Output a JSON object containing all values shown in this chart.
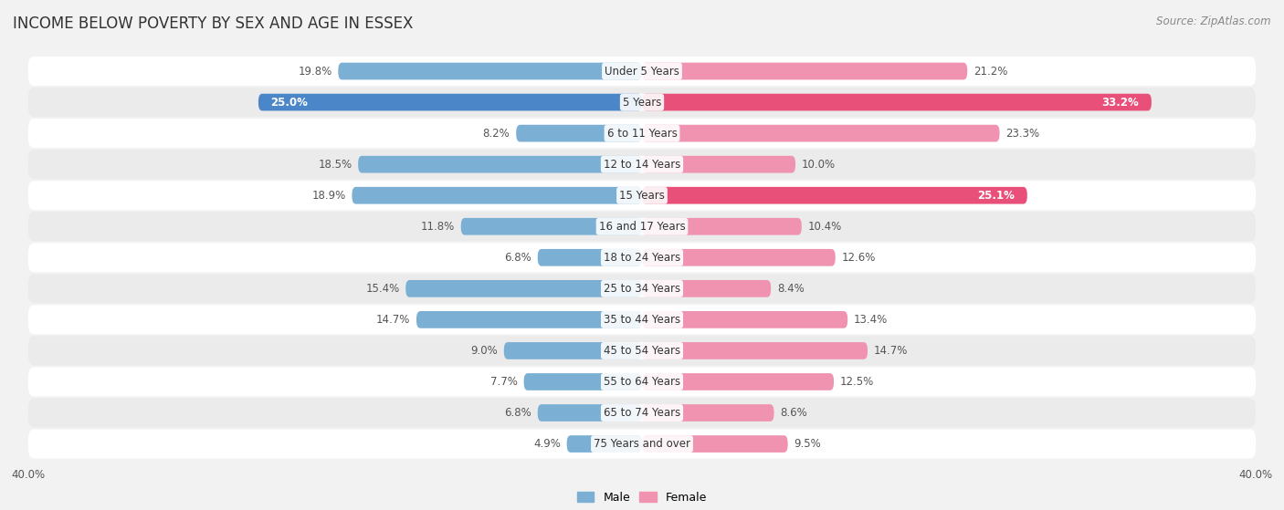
{
  "title": "INCOME BELOW POVERTY BY SEX AND AGE IN ESSEX",
  "source": "Source: ZipAtlas.com",
  "categories": [
    "Under 5 Years",
    "5 Years",
    "6 to 11 Years",
    "12 to 14 Years",
    "15 Years",
    "16 and 17 Years",
    "18 to 24 Years",
    "25 to 34 Years",
    "35 to 44 Years",
    "45 to 54 Years",
    "55 to 64 Years",
    "65 to 74 Years",
    "75 Years and over"
  ],
  "male_values": [
    19.8,
    25.0,
    8.2,
    18.5,
    18.9,
    11.8,
    6.8,
    15.4,
    14.7,
    9.0,
    7.7,
    6.8,
    4.9
  ],
  "female_values": [
    21.2,
    33.2,
    23.3,
    10.0,
    25.1,
    10.4,
    12.6,
    8.4,
    13.4,
    14.7,
    12.5,
    8.6,
    9.5
  ],
  "male_color": "#7bafd4",
  "female_color": "#f093b0",
  "male_bold_indices": [
    1
  ],
  "female_bold_indices": [
    1,
    4
  ],
  "male_bold_color": "#4a86c8",
  "female_bold_color": "#e8507a",
  "xlim": 40.0,
  "bar_height": 0.55,
  "background_color": "#f2f2f2",
  "row_bg_odd": "#ffffff",
  "row_bg_even": "#ebebeb",
  "title_fontsize": 12,
  "label_fontsize": 8.5,
  "value_fontsize": 8.5,
  "axis_label_fontsize": 8.5,
  "source_fontsize": 8.5,
  "legend_fontsize": 9
}
